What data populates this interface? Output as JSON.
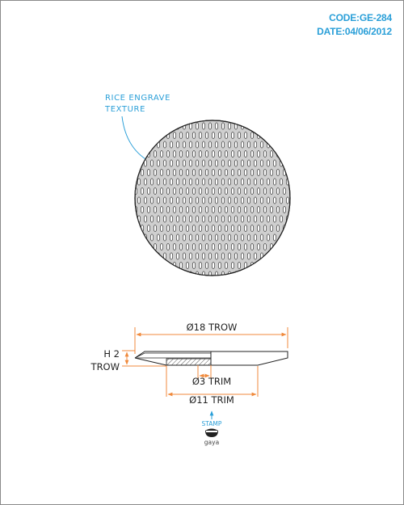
{
  "header": {
    "code": "CODE:GE-284",
    "date": "DATE:04/06/2012"
  },
  "callout": {
    "line1": "RICE ENGRAVE",
    "line2": "TEXTURE"
  },
  "dimensions": {
    "overall_diameter": "Ø18 TROW",
    "height_label_top": "H 2",
    "height_label_bottom": "TROW",
    "trim_small": "Ø3 TRIM",
    "trim_large": "Ø11 TRIM"
  },
  "stamp": {
    "label": "STAMP",
    "brand": "gaya"
  },
  "colors": {
    "accent": "#2a9fd8",
    "dimension": "#f08a3c",
    "line": "#222222",
    "hatch": "#555555"
  }
}
